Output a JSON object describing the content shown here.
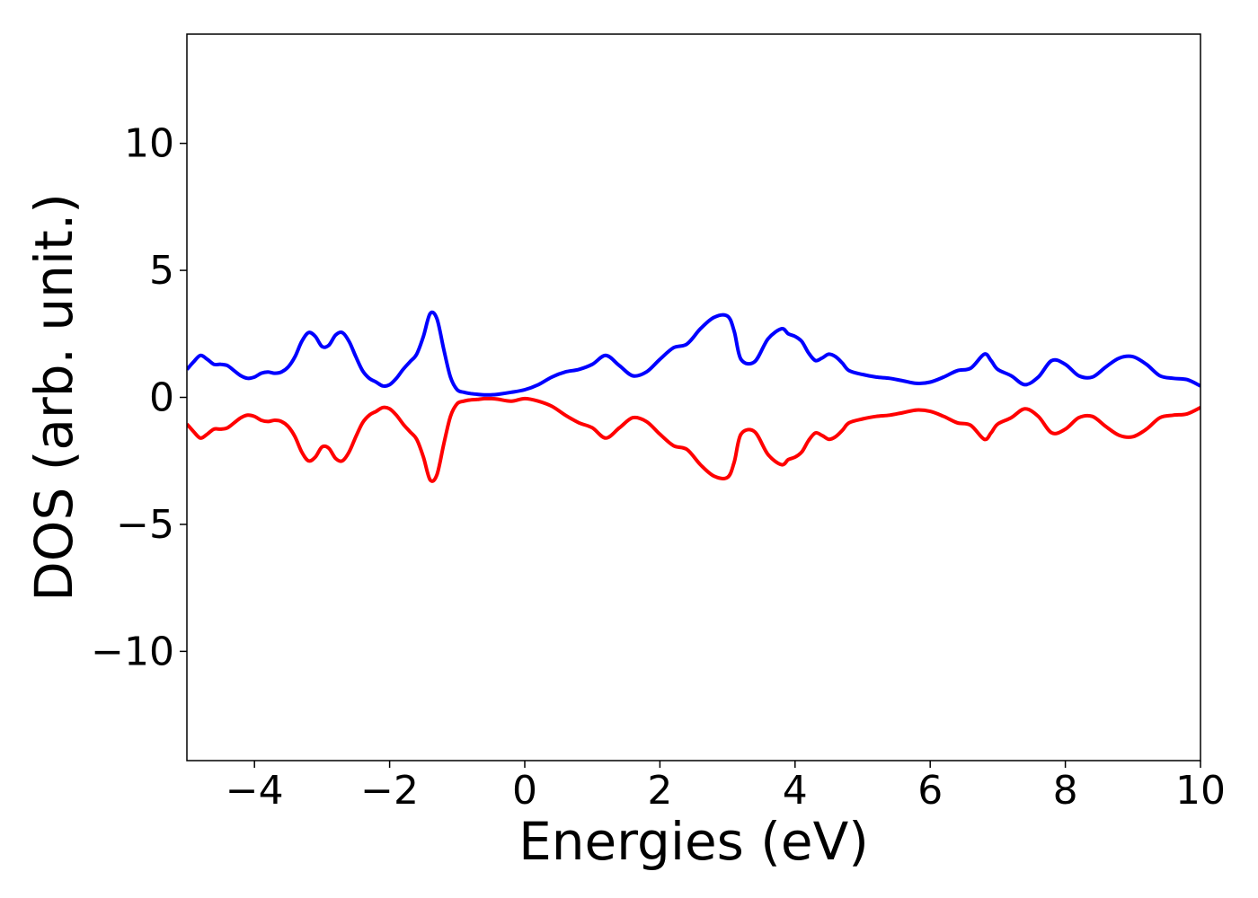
{
  "chart_data": {
    "type": "line",
    "xlabel": "Energies (eV)",
    "ylabel": "DOS (arb. unit.)",
    "xlim": [
      -5,
      10
    ],
    "ylim": [
      -14.3,
      14.3
    ],
    "xticks": [
      -4,
      -2,
      0,
      2,
      4,
      6,
      8,
      10
    ],
    "xtick_labels": [
      "−4",
      "−2",
      "0",
      "2",
      "4",
      "6",
      "8",
      "10"
    ],
    "yticks": [
      -10,
      -5,
      0,
      5,
      10
    ],
    "ytick_labels": [
      "−10",
      "−5",
      "0",
      "5",
      "10"
    ],
    "grid": false,
    "legend": "none",
    "series": [
      {
        "color": "#0000ff",
        "x": [
          -5.0,
          -4.9,
          -4.8,
          -4.7,
          -4.6,
          -4.5,
          -4.4,
          -4.3,
          -4.2,
          -4.1,
          -4.0,
          -3.9,
          -3.8,
          -3.7,
          -3.6,
          -3.5,
          -3.4,
          -3.3,
          -3.2,
          -3.1,
          -3.0,
          -2.9,
          -2.8,
          -2.7,
          -2.6,
          -2.5,
          -2.4,
          -2.3,
          -2.2,
          -2.1,
          -2.0,
          -1.9,
          -1.8,
          -1.7,
          -1.6,
          -1.5,
          -1.4,
          -1.3,
          -1.2,
          -1.1,
          -1.0,
          -0.9,
          -0.8,
          -0.7,
          -0.6,
          -0.5,
          -0.4,
          -0.2,
          0.0,
          0.2,
          0.4,
          0.6,
          0.8,
          1.0,
          1.2,
          1.4,
          1.6,
          1.8,
          2.0,
          2.2,
          2.4,
          2.6,
          2.8,
          3.0,
          3.1,
          3.2,
          3.4,
          3.6,
          3.8,
          3.9,
          4.0,
          4.1,
          4.2,
          4.3,
          4.4,
          4.5,
          4.6,
          4.7,
          4.8,
          5.0,
          5.2,
          5.4,
          5.6,
          5.8,
          6.0,
          6.2,
          6.4,
          6.6,
          6.8,
          6.9,
          7.0,
          7.2,
          7.4,
          7.6,
          7.8,
          8.0,
          8.2,
          8.4,
          8.6,
          8.8,
          9.0,
          9.2,
          9.4,
          9.6,
          9.8,
          10.0
        ],
        "y": [
          1.1,
          1.4,
          1.65,
          1.5,
          1.3,
          1.3,
          1.25,
          1.05,
          0.85,
          0.75,
          0.8,
          0.95,
          1.0,
          0.95,
          1.0,
          1.2,
          1.6,
          2.2,
          2.55,
          2.4,
          2.0,
          2.05,
          2.45,
          2.55,
          2.2,
          1.6,
          1.05,
          0.75,
          0.6,
          0.45,
          0.5,
          0.75,
          1.1,
          1.4,
          1.7,
          2.4,
          3.3,
          3.1,
          1.9,
          0.8,
          0.3,
          0.2,
          0.15,
          0.12,
          0.1,
          0.1,
          0.12,
          0.2,
          0.3,
          0.5,
          0.8,
          1.0,
          1.1,
          1.3,
          1.65,
          1.25,
          0.85,
          1.0,
          1.5,
          1.95,
          2.1,
          2.7,
          3.15,
          3.2,
          2.6,
          1.5,
          1.4,
          2.3,
          2.7,
          2.5,
          2.4,
          2.2,
          1.75,
          1.45,
          1.55,
          1.7,
          1.6,
          1.35,
          1.05,
          0.9,
          0.8,
          0.75,
          0.65,
          0.55,
          0.6,
          0.8,
          1.05,
          1.15,
          1.7,
          1.45,
          1.1,
          0.85,
          0.5,
          0.8,
          1.45,
          1.3,
          0.85,
          0.8,
          1.2,
          1.55,
          1.6,
          1.3,
          0.85,
          0.75,
          0.7,
          0.45
        ]
      },
      {
        "color": "#ff0000",
        "x": [
          -5.0,
          -4.9,
          -4.8,
          -4.7,
          -4.6,
          -4.5,
          -4.4,
          -4.3,
          -4.2,
          -4.1,
          -4.0,
          -3.9,
          -3.8,
          -3.7,
          -3.6,
          -3.5,
          -3.4,
          -3.3,
          -3.2,
          -3.1,
          -3.0,
          -2.9,
          -2.8,
          -2.7,
          -2.6,
          -2.5,
          -2.4,
          -2.3,
          -2.2,
          -2.1,
          -2.0,
          -1.9,
          -1.8,
          -1.7,
          -1.6,
          -1.5,
          -1.4,
          -1.3,
          -1.2,
          -1.1,
          -1.0,
          -0.9,
          -0.8,
          -0.7,
          -0.6,
          -0.5,
          -0.4,
          -0.2,
          0.0,
          0.2,
          0.4,
          0.6,
          0.8,
          1.0,
          1.2,
          1.4,
          1.6,
          1.8,
          2.0,
          2.2,
          2.4,
          2.6,
          2.8,
          3.0,
          3.1,
          3.2,
          3.4,
          3.6,
          3.8,
          3.9,
          4.0,
          4.1,
          4.2,
          4.3,
          4.4,
          4.5,
          4.6,
          4.7,
          4.8,
          5.0,
          5.2,
          5.4,
          5.6,
          5.8,
          6.0,
          6.2,
          6.4,
          6.6,
          6.8,
          6.9,
          7.0,
          7.2,
          7.4,
          7.6,
          7.8,
          8.0,
          8.2,
          8.4,
          8.6,
          8.8,
          9.0,
          9.2,
          9.4,
          9.6,
          9.8,
          10.0
        ],
        "y": [
          -1.05,
          -1.35,
          -1.6,
          -1.45,
          -1.25,
          -1.25,
          -1.2,
          -1.0,
          -0.8,
          -0.7,
          -0.75,
          -0.9,
          -0.95,
          -0.9,
          -0.95,
          -1.15,
          -1.55,
          -2.15,
          -2.5,
          -2.35,
          -1.95,
          -2.0,
          -2.4,
          -2.5,
          -2.15,
          -1.55,
          -1.0,
          -0.7,
          -0.55,
          -0.4,
          -0.45,
          -0.7,
          -1.05,
          -1.35,
          -1.65,
          -2.35,
          -3.25,
          -3.05,
          -1.85,
          -0.75,
          -0.25,
          -0.15,
          -0.1,
          -0.08,
          -0.05,
          -0.05,
          -0.07,
          -0.15,
          -0.05,
          -0.15,
          -0.35,
          -0.7,
          -1.0,
          -1.2,
          -1.6,
          -1.2,
          -0.8,
          -0.95,
          -1.45,
          -1.9,
          -2.05,
          -2.65,
          -3.1,
          -3.15,
          -2.55,
          -1.45,
          -1.35,
          -2.25,
          -2.65,
          -2.45,
          -2.35,
          -2.15,
          -1.7,
          -1.4,
          -1.5,
          -1.65,
          -1.55,
          -1.3,
          -1.0,
          -0.85,
          -0.75,
          -0.7,
          -0.6,
          -0.5,
          -0.55,
          -0.75,
          -1.0,
          -1.1,
          -1.65,
          -1.4,
          -1.05,
          -0.8,
          -0.45,
          -0.75,
          -1.4,
          -1.25,
          -0.8,
          -0.75,
          -1.15,
          -1.5,
          -1.55,
          -1.25,
          -0.8,
          -0.7,
          -0.65,
          -0.4
        ]
      }
    ]
  }
}
